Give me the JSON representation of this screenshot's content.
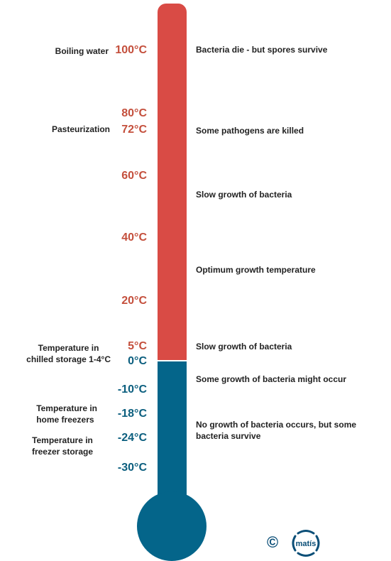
{
  "colors": {
    "hot": "#d94b45",
    "cold": "#04658a",
    "hot_text": "#c44f3c",
    "cold_text": "#0b5e7e"
  },
  "temperatures": {
    "t100": "100°C",
    "t80": "80°C",
    "t72": "72°C",
    "t60": "60°C",
    "t40": "40°C",
    "t20": "20°C",
    "t5": "5°C",
    "t0": "0°C",
    "tm10": "-10°C",
    "tm18": "-18°C",
    "tm24": "-24°C",
    "tm30": "-30°C"
  },
  "left_labels": {
    "boiling": "Boiling water",
    "pasteurization": "Pasteurization",
    "chilled_1": "Temperature in",
    "chilled_2": "chilled storage 1-4°C",
    "home_1": "Temperature in",
    "home_2": "home freezers",
    "freezer_1": "Temperature in",
    "freezer_2": "freezer storage"
  },
  "right_labels": {
    "r100": "Bacteria die - but spores survive",
    "r72": "Some pathogens are killed",
    "r60": "Slow growth of bacteria",
    "r40": "Optimum growth temperature",
    "r5": "Slow growth of bacteria",
    "r0": "Some growth of bacteria might occur",
    "rm18": "No growth of bacteria occurs, but some bacteria survive"
  },
  "footer": {
    "copyright": "©",
    "logo_text": "matís"
  }
}
